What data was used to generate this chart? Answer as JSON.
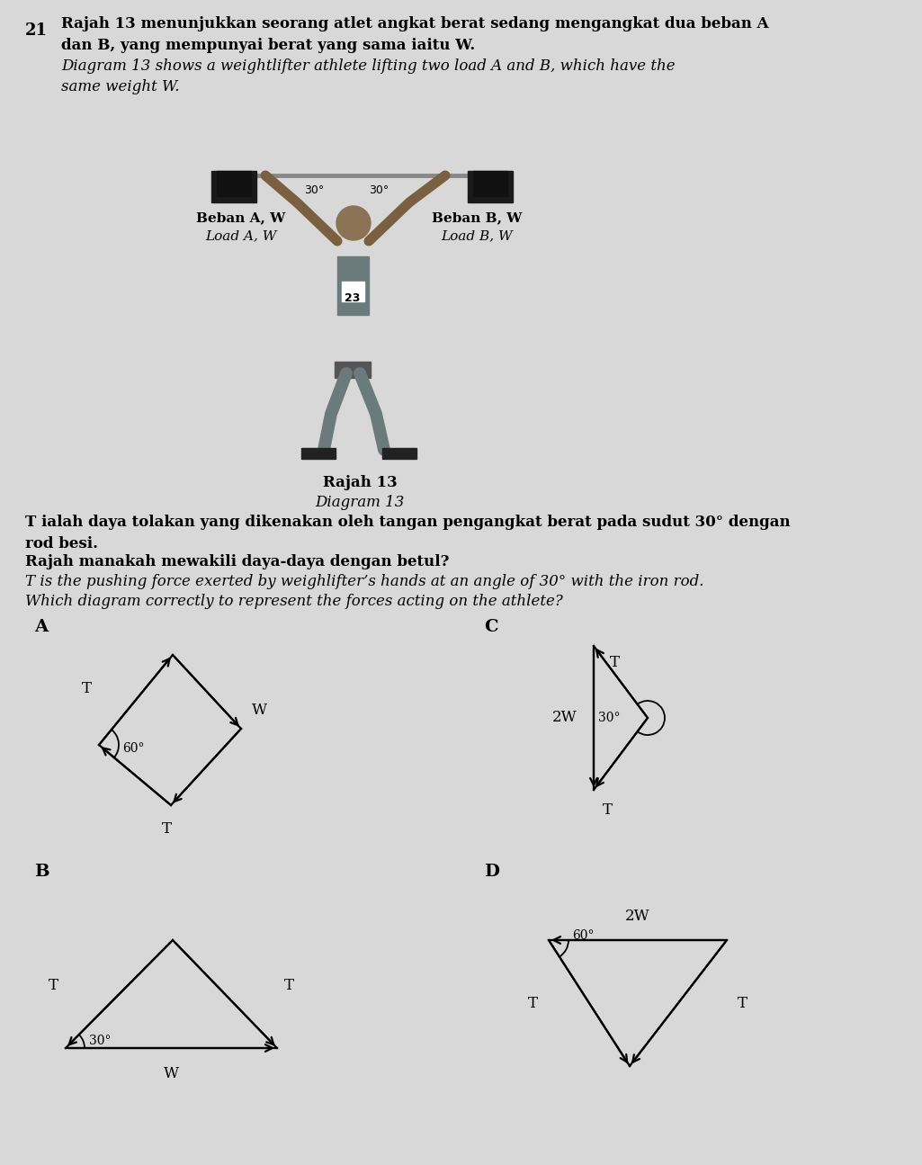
{
  "title_num": "21",
  "text_line1": "Rajah 13 menunjukkan seorang atlet angkat berat sedang mengangkat dua beban A",
  "text_line2": "dan B, yang mempunyai berat yang sama iaitu W.",
  "text_line3_italic": "Diagram 13 shows a weightlifter athlete lifting two load A and B, which have the",
  "text_line4_italic": "same weight W.",
  "caption1": "Rajah 13",
  "caption2": "Diagram 13",
  "label_A_left": "Beban A, W",
  "label_A_left2": "Load A, W",
  "label_B_right": "Beban B, W",
  "label_B_right2": "Load B, W",
  "num_label": "23",
  "text_body1": "T ialah daya tolakan yang dikenakan oleh tangan pengangkat berat pada sudut 30° dengan",
  "text_body2": "rod besi.",
  "text_body3": "Rajah manakah mewakili daya-daya dengan betul?",
  "text_body4_italic": "T is the pushing force exerted by weighlifter’s hands at an angle of 30° with the iron rod.",
  "text_body5_italic": "Which diagram correctly to represent the forces acting on the athlete?",
  "label_A": "A",
  "label_B": "B",
  "label_C": "C",
  "label_D": "D",
  "bg_color": "#d8d8d8",
  "line_color": "#000000",
  "text_color": "#000000"
}
